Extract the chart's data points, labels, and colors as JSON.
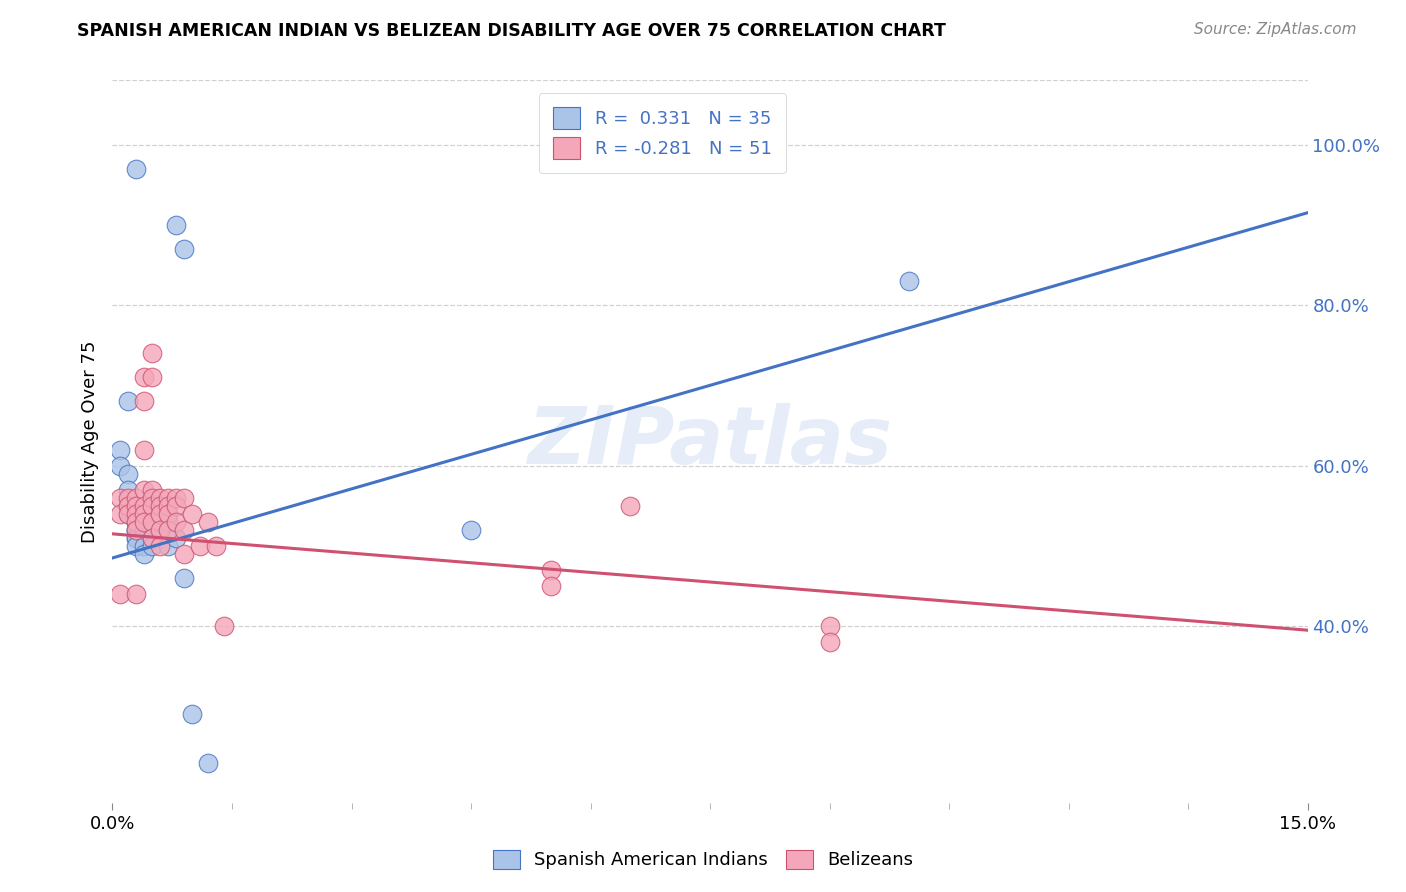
{
  "title": "SPANISH AMERICAN INDIAN VS BELIZEAN DISABILITY AGE OVER 75 CORRELATION CHART",
  "source": "Source: ZipAtlas.com",
  "ylabel": "Disability Age Over 75",
  "xlim": [
    0.0,
    0.15
  ],
  "ylim": [
    0.18,
    1.08
  ],
  "watermark": "ZIPatlas",
  "blue_color": "#aac4e8",
  "pink_color": "#f4a7b9",
  "blue_line_color": "#4472C4",
  "pink_line_color": "#D05070",
  "blue_line_x0": 0.0,
  "blue_line_y0": 0.485,
  "blue_line_x1": 0.15,
  "blue_line_y1": 0.915,
  "pink_line_x0": 0.0,
  "pink_line_y0": 0.515,
  "pink_line_x1": 0.15,
  "pink_line_y1": 0.395,
  "yticks": [
    0.4,
    0.6,
    0.8,
    1.0
  ],
  "ytick_labels": [
    "40.0%",
    "60.0%",
    "80.0%",
    "100.0%"
  ],
  "spanish_x": [
    0.003,
    0.008,
    0.009,
    0.002,
    0.001,
    0.001,
    0.002,
    0.002,
    0.002,
    0.002,
    0.003,
    0.003,
    0.003,
    0.003,
    0.003,
    0.003,
    0.003,
    0.003,
    0.004,
    0.004,
    0.004,
    0.004,
    0.004,
    0.005,
    0.005,
    0.005,
    0.006,
    0.007,
    0.007,
    0.008,
    0.009,
    0.01,
    0.012,
    0.1,
    0.045
  ],
  "spanish_y": [
    0.97,
    0.9,
    0.87,
    0.68,
    0.62,
    0.6,
    0.59,
    0.57,
    0.55,
    0.54,
    0.54,
    0.53,
    0.53,
    0.52,
    0.52,
    0.51,
    0.51,
    0.5,
    0.54,
    0.53,
    0.52,
    0.5,
    0.49,
    0.52,
    0.51,
    0.5,
    0.52,
    0.53,
    0.5,
    0.51,
    0.46,
    0.29,
    0.23,
    0.83,
    0.52
  ],
  "belizean_x": [
    0.001,
    0.001,
    0.001,
    0.002,
    0.002,
    0.002,
    0.003,
    0.003,
    0.003,
    0.003,
    0.003,
    0.003,
    0.004,
    0.004,
    0.004,
    0.004,
    0.004,
    0.004,
    0.004,
    0.005,
    0.005,
    0.005,
    0.005,
    0.005,
    0.005,
    0.005,
    0.006,
    0.006,
    0.006,
    0.006,
    0.006,
    0.007,
    0.007,
    0.007,
    0.007,
    0.008,
    0.008,
    0.008,
    0.009,
    0.009,
    0.009,
    0.01,
    0.011,
    0.012,
    0.013,
    0.014,
    0.055,
    0.055,
    0.065,
    0.09,
    0.09
  ],
  "belizean_y": [
    0.56,
    0.54,
    0.44,
    0.56,
    0.55,
    0.54,
    0.56,
    0.55,
    0.54,
    0.53,
    0.52,
    0.44,
    0.71,
    0.68,
    0.62,
    0.57,
    0.55,
    0.54,
    0.53,
    0.74,
    0.71,
    0.57,
    0.56,
    0.55,
    0.53,
    0.51,
    0.56,
    0.55,
    0.54,
    0.52,
    0.5,
    0.56,
    0.55,
    0.54,
    0.52,
    0.56,
    0.55,
    0.53,
    0.56,
    0.52,
    0.49,
    0.54,
    0.5,
    0.53,
    0.5,
    0.4,
    0.47,
    0.45,
    0.55,
    0.4,
    0.38
  ]
}
